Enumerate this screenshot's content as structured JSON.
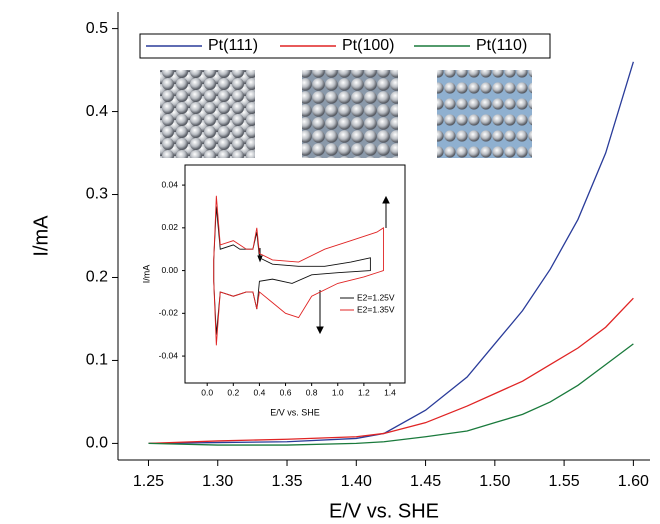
{
  "chart_data": [
    {
      "type": "line",
      "x_label": "E/V vs. SHE",
      "y_label": "I/mA",
      "x": [
        1.25,
        1.3,
        1.35,
        1.4,
        1.42,
        1.45,
        1.48,
        1.5,
        1.52,
        1.54,
        1.56,
        1.58,
        1.6
      ],
      "series": [
        {
          "name": "Pt(111)",
          "color": "#2a3c9a",
          "values": [
            0,
            0.001,
            0.002,
            0.006,
            0.012,
            0.04,
            0.08,
            0.12,
            0.16,
            0.21,
            0.27,
            0.35,
            0.46
          ]
        },
        {
          "name": "Pt(100)",
          "color": "#e02424",
          "values": [
            0,
            0.003,
            0.005,
            0.008,
            0.012,
            0.025,
            0.045,
            0.06,
            0.075,
            0.095,
            0.115,
            0.14,
            0.175
          ]
        },
        {
          "name": "Pt(110)",
          "color": "#1a7a3c",
          "values": [
            0,
            -0.002,
            -0.002,
            0,
            0.002,
            0.008,
            0.015,
            0.025,
            0.035,
            0.05,
            0.07,
            0.095,
            0.12
          ]
        }
      ],
      "xlim": [
        1.228,
        1.612
      ],
      "ylim": [
        -0.02,
        0.52
      ],
      "xticks": [
        1.25,
        {
          "value": 1.3,
          "label": "1.30"
        },
        1.35,
        {
          "value": 1.4,
          "label": "1.40"
        },
        1.45,
        {
          "value": 1.5,
          "label": "1.50"
        },
        1.55,
        {
          "value": 1.6,
          "label": "1.60"
        }
      ],
      "yticks": [
        {
          "value": 0,
          "label": "0.0"
        },
        0.1,
        0.2,
        0.3,
        0.4,
        0.5
      ],
      "legend": "top"
    },
    {
      "type": "line",
      "x_label": "E/V vs. SHE",
      "y_label": "I/mA",
      "series": [
        {
          "name": "E2=1.25V",
          "color": "#111111",
          "x": [
            0.05,
            0.07,
            0.1,
            0.2,
            0.25,
            0.3,
            0.35,
            0.38,
            0.4,
            0.5,
            0.7,
            0.9,
            1.1,
            1.25,
            1.25,
            1.0,
            0.8,
            0.65,
            0.5,
            0.4,
            0.38,
            0.35,
            0.3,
            0.2,
            0.1,
            0.07,
            0.05,
            0.05
          ],
          "values": [
            0.005,
            0.03,
            0.01,
            0.012,
            0.01,
            0.01,
            0.01,
            0.018,
            0.006,
            0.003,
            0.002,
            0.002,
            0.004,
            0.006,
            0,
            -0.001,
            -0.002,
            -0.006,
            -0.004,
            -0.005,
            -0.018,
            -0.01,
            -0.01,
            -0.012,
            -0.01,
            -0.03,
            -0.005,
            0.005
          ]
        },
        {
          "name": "E2=1.35V",
          "color": "#e02424",
          "x": [
            0.05,
            0.07,
            0.1,
            0.2,
            0.25,
            0.3,
            0.35,
            0.38,
            0.4,
            0.5,
            0.7,
            0.9,
            1.1,
            1.3,
            1.35,
            1.35,
            1.2,
            1.0,
            0.8,
            0.7,
            0.6,
            0.5,
            0.4,
            0.38,
            0.35,
            0.3,
            0.2,
            0.1,
            0.07,
            0.05,
            0.05
          ],
          "values": [
            0.005,
            0.035,
            0.012,
            0.014,
            0.012,
            0.01,
            0.01,
            0.02,
            0.008,
            0.005,
            0.004,
            0.01,
            0.014,
            0.018,
            0.02,
            0,
            -0.003,
            -0.006,
            -0.012,
            -0.022,
            -0.02,
            -0.015,
            -0.01,
            -0.018,
            -0.01,
            -0.01,
            -0.012,
            -0.01,
            -0.035,
            -0.005,
            0.005
          ]
        }
      ],
      "xlim": [
        -0.17,
        1.515
      ],
      "ylim": [
        -0.0526,
        0.0494
      ],
      "xticks": [
        {
          "value": 0,
          "label": "0.0"
        },
        0.2,
        0.4,
        0.6,
        0.8,
        {
          "value": 1,
          "label": "1.0"
        },
        1.2,
        1.4
      ],
      "yticks": [
        -0.04,
        -0.02,
        {
          "value": 0,
          "label": "0.00"
        },
        0.02,
        0.04
      ],
      "legend": "lower right"
    }
  ]
}
